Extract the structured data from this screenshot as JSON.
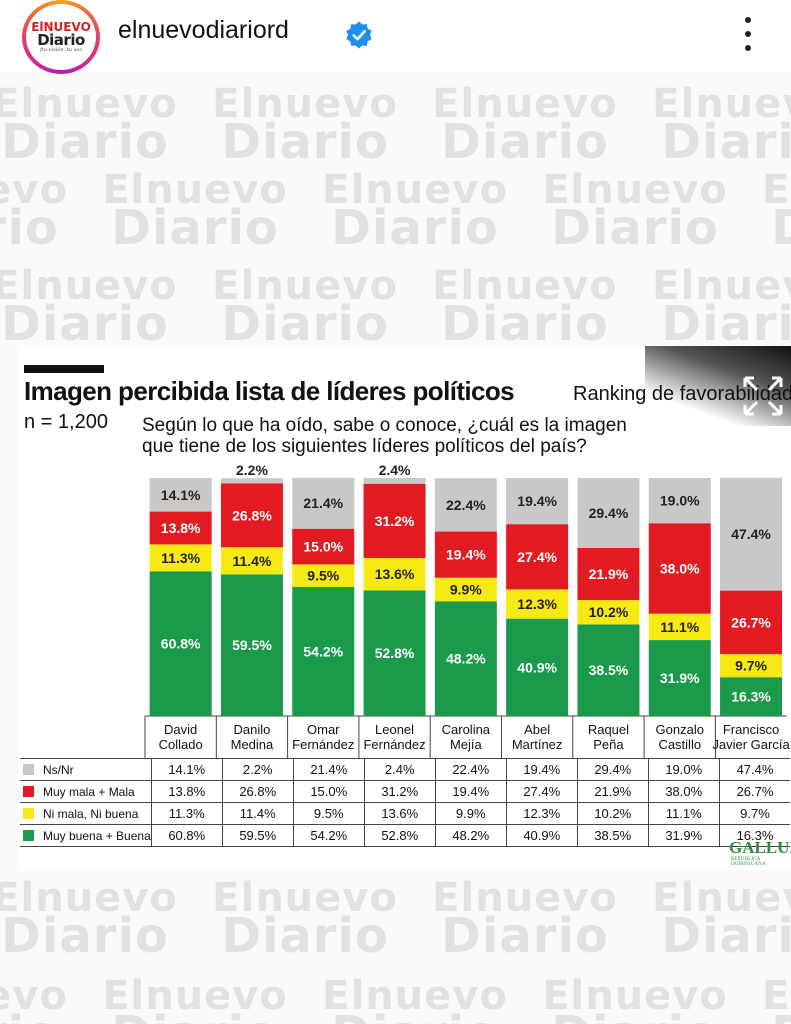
{
  "header": {
    "username": "elnuevodiariord",
    "logo_el": "ElNUEVO",
    "logo_diario": "Diario",
    "logo_tagline": "ftu visión, tu voz"
  },
  "chart": {
    "title": "Imagen percibida lista de líderes políticos",
    "right_subtitle": "Ranking de favorabilidad",
    "sample": "n = 1,200",
    "question": "Según lo que ha oído, sabe o conoce, ¿cuál es la imagen que tiene de los siguientes líderes políticos del país?",
    "source": "GALLUP",
    "source_sub": "REPÚBLICA DOMINICANA"
  },
  "colors": {
    "ns_nr": "#c8c8c8",
    "mala": "#e21b23",
    "ni": "#f7ea14",
    "buena": "#1a9a4a"
  },
  "chart_data": {
    "type": "bar",
    "stacked": true,
    "categories": [
      "David Collado",
      "Danilo Medina",
      "Omar Fernández",
      "Leonel Fernández",
      "Carolina Mejía",
      "Abel Martínez",
      "Raquel Peña",
      "Gonzalo Castillo",
      "Francisco Javier García"
    ],
    "category_lines": [
      [
        "David",
        "Collado"
      ],
      [
        "Danilo",
        "Medina"
      ],
      [
        "Omar",
        "Fernández"
      ],
      [
        "Leonel",
        "Fernández"
      ],
      [
        "Carolina",
        "Mejía"
      ],
      [
        "Abel",
        "Martínez"
      ],
      [
        "Raquel",
        "Peña"
      ],
      [
        "Gonzalo",
        "Castillo"
      ],
      [
        "Francisco",
        "Javier García"
      ]
    ],
    "series": [
      {
        "name": "Muy buena + Buena",
        "color": "#1a9a4a",
        "values": [
          60.8,
          59.5,
          54.2,
          52.8,
          48.2,
          40.9,
          38.5,
          31.9,
          16.3
        ]
      },
      {
        "name": "Ni mala, Ni buena",
        "color": "#f7ea14",
        "values": [
          11.3,
          11.4,
          9.5,
          13.6,
          9.9,
          12.3,
          10.2,
          11.1,
          9.7
        ]
      },
      {
        "name": "Muy mala + Mala",
        "color": "#e21b23",
        "values": [
          13.8,
          26.8,
          15.0,
          31.2,
          19.4,
          27.4,
          21.9,
          38.0,
          26.7
        ]
      },
      {
        "name": "Ns/Nr",
        "color": "#c8c8c8",
        "values": [
          14.1,
          2.2,
          21.4,
          2.4,
          22.4,
          19.4,
          29.4,
          19.0,
          47.4
        ]
      }
    ],
    "ylim": [
      0,
      100
    ],
    "value_suffix": "%"
  },
  "table": {
    "rows": [
      {
        "label": "Ns/Nr",
        "color": "#c8c8c8",
        "values": [
          "14.1%",
          "2.2%",
          "21.4%",
          "2.4%",
          "22.4%",
          "19.4%",
          "29.4%",
          "19.0%",
          "47.4%"
        ]
      },
      {
        "label": "Muy mala + Mala",
        "color": "#e21b23",
        "values": [
          "13.8%",
          "26.8%",
          "15.0%",
          "31.2%",
          "19.4%",
          "27.4%",
          "21.9%",
          "38.0%",
          "26.7%"
        ]
      },
      {
        "label": "Ni mala, Ni buena",
        "color": "#f7ea14",
        "values": [
          "11.3%",
          "11.4%",
          "9.5%",
          "13.6%",
          "9.9%",
          "12.3%",
          "10.2%",
          "11.1%",
          "9.7%"
        ]
      },
      {
        "label": "Muy buena + Buena",
        "color": "#1a9a4a",
        "values": [
          "60.8%",
          "59.5%",
          "54.2%",
          "52.8%",
          "48.2%",
          "40.9%",
          "38.5%",
          "31.9%",
          "16.3%"
        ]
      }
    ]
  },
  "watermark": {
    "line1": "Elnuevo",
    "line2": "Diario"
  }
}
